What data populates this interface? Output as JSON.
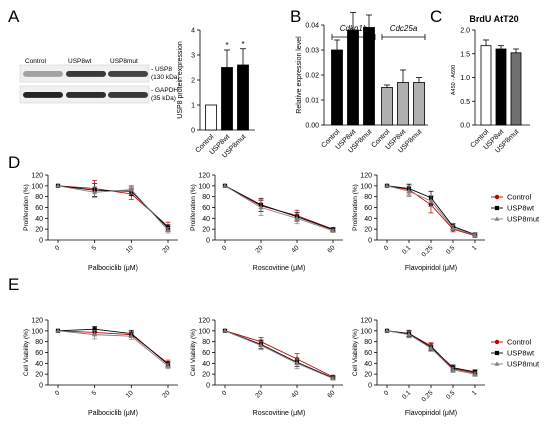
{
  "panel_letters": [
    "A",
    "B",
    "C",
    "D",
    "E"
  ],
  "blot": {
    "lanes": [
      "Control",
      "USP8wt",
      "USP8mut"
    ],
    "bands": [
      {
        "name": "- USP8",
        "size": "(130 kDa)",
        "intensity": [
          0.35,
          0.85,
          0.8
        ]
      },
      {
        "name": "- GAPDH",
        "size": "(35 kDa)",
        "intensity": [
          0.95,
          0.9,
          0.85
        ]
      }
    ]
  },
  "chart_data": [
    {
      "id": "A",
      "type": "bar",
      "categories": [
        "Control",
        "USP8wt",
        "USP8mut"
      ],
      "values": [
        1.0,
        2.5,
        2.6
      ],
      "errors": [
        0.0,
        0.7,
        0.65
      ],
      "bar_colors": [
        "#ffffff",
        "#000000",
        "#000000"
      ],
      "significance": [
        "",
        "*",
        "*"
      ],
      "ylabel": "USP8 protein expression",
      "ylim": [
        0,
        4
      ],
      "yticks": [
        0,
        1,
        2,
        3,
        4
      ]
    },
    {
      "id": "B",
      "type": "bar",
      "groups": [
        {
          "label": "Cdkn1b",
          "categories": [
            "Control",
            "USP8wt",
            "USP8mut"
          ],
          "values": [
            0.03,
            0.038,
            0.039
          ],
          "errors": [
            0.004,
            0.007,
            0.005
          ],
          "color": "#000000"
        },
        {
          "label": "Cdc25a",
          "categories": [
            "Control",
            "USP8wt",
            "USP8mut"
          ],
          "values": [
            0.015,
            0.017,
            0.017
          ],
          "errors": [
            0.001,
            0.005,
            0.002
          ],
          "color": "#b0b0b0"
        }
      ],
      "ylabel": "Relative expression level",
      "ylim": [
        0,
        0.04
      ],
      "yticks": [
        0,
        0.01,
        0.02,
        0.03,
        0.04
      ],
      "ytick_labels": [
        "0.00",
        "0.01",
        "0.02",
        "0.03",
        "0.04"
      ]
    },
    {
      "id": "C",
      "type": "bar",
      "title": "BrdU AtT20",
      "categories": [
        "Control",
        "USP8wt",
        "USP8mut"
      ],
      "values": [
        1.67,
        1.6,
        1.52
      ],
      "errors": [
        0.12,
        0.07,
        0.08
      ],
      "bar_colors": [
        "#ffffff",
        "#000000",
        "#707070"
      ],
      "ylabel": "A450 - A690",
      "ylim": [
        0,
        2
      ],
      "yticks": [
        0,
        0.5,
        1,
        1.5,
        2
      ],
      "ytick_labels": [
        "0.0",
        "0.5",
        "1.0",
        "1.5",
        "2.0"
      ]
    },
    {
      "id": "D1",
      "type": "line",
      "xlabel": "Palbociclib (μM)",
      "ylabel": "Proliferation (%)",
      "x": [
        "0",
        "5",
        "10",
        "20"
      ],
      "ylim": [
        0,
        120
      ],
      "yticks": [
        0,
        20,
        40,
        60,
        80,
        100,
        120
      ],
      "series": [
        {
          "name": "Control",
          "values": [
            100,
            95,
            85,
            25
          ],
          "errors": [
            0,
            15,
            10,
            8
          ]
        },
        {
          "name": "USP8wt",
          "values": [
            100,
            92,
            90,
            22
          ],
          "errors": [
            0,
            12,
            8,
            6
          ]
        },
        {
          "name": "USP8mut",
          "values": [
            100,
            88,
            93,
            18
          ],
          "errors": [
            0,
            10,
            8,
            5
          ]
        }
      ]
    },
    {
      "id": "D2",
      "type": "line",
      "xlabel": "Roscovitine (μM)",
      "ylabel": "Proliferation (%)",
      "x": [
        "0",
        "20",
        "40",
        "60"
      ],
      "ylim": [
        0,
        120
      ],
      "yticks": [
        0,
        20,
        40,
        60,
        80,
        100,
        120
      ],
      "series": [
        {
          "name": "Control",
          "values": [
            100,
            63,
            45,
            20
          ],
          "errors": [
            0,
            10,
            10,
            3
          ]
        },
        {
          "name": "USP8wt",
          "values": [
            100,
            65,
            43,
            19
          ],
          "errors": [
            0,
            12,
            8,
            3
          ]
        },
        {
          "name": "USP8mut",
          "values": [
            100,
            60,
            40,
            17
          ],
          "errors": [
            0,
            15,
            10,
            3
          ]
        }
      ]
    },
    {
      "id": "D3",
      "type": "line",
      "xlabel": "Flavopiridol (μM)",
      "ylabel": "Proliferation (%)",
      "x": [
        "0",
        "0.1",
        "0.25",
        "0.5",
        "1"
      ],
      "ylim": [
        0,
        120
      ],
      "yticks": [
        0,
        20,
        40,
        60,
        80,
        100,
        120
      ],
      "legend": "right",
      "series": [
        {
          "name": "Control",
          "values": [
            100,
            93,
            65,
            20,
            8
          ],
          "errors": [
            0,
            10,
            15,
            5,
            3
          ]
        },
        {
          "name": "USP8wt",
          "values": [
            100,
            95,
            78,
            25,
            10
          ],
          "errors": [
            0,
            8,
            12,
            5,
            3
          ]
        },
        {
          "name": "USP8mut",
          "values": [
            100,
            90,
            72,
            22,
            9
          ],
          "errors": [
            0,
            10,
            10,
            5,
            3
          ]
        }
      ]
    },
    {
      "id": "E1",
      "type": "line",
      "xlabel": "Palbociclib (μM)",
      "ylabel": "Cell Viability (%)",
      "x": [
        "0",
        "5",
        "10",
        "20"
      ],
      "ylim": [
        0,
        120
      ],
      "yticks": [
        0,
        20,
        40,
        60,
        80,
        100,
        120
      ],
      "series": [
        {
          "name": "Control",
          "values": [
            100,
            97,
            93,
            40
          ],
          "errors": [
            0,
            5,
            5,
            6
          ]
        },
        {
          "name": "USP8wt",
          "values": [
            100,
            103,
            95,
            38
          ],
          "errors": [
            0,
            5,
            6,
            5
          ]
        },
        {
          "name": "USP8mut",
          "values": [
            100,
            93,
            90,
            35
          ],
          "errors": [
            0,
            8,
            6,
            5
          ]
        }
      ]
    },
    {
      "id": "E2",
      "type": "line",
      "xlabel": "Roscovitine (μM)",
      "ylabel": "Cell Viability (%)",
      "x": [
        "0",
        "20",
        "40",
        "60"
      ],
      "ylim": [
        0,
        120
      ],
      "yticks": [
        0,
        20,
        40,
        60,
        80,
        100,
        120
      ],
      "series": [
        {
          "name": "Control",
          "values": [
            100,
            80,
            48,
            15
          ],
          "errors": [
            0,
            8,
            10,
            3
          ]
        },
        {
          "name": "USP8wt",
          "values": [
            100,
            75,
            42,
            13
          ],
          "errors": [
            0,
            8,
            8,
            3
          ]
        },
        {
          "name": "USP8mut",
          "values": [
            100,
            73,
            40,
            12
          ],
          "errors": [
            0,
            8,
            10,
            3
          ]
        }
      ]
    },
    {
      "id": "E3",
      "type": "line",
      "xlabel": "Flavopiridol (μM)",
      "ylabel": "Cell Viability (%)",
      "x": [
        "0",
        "0.1",
        "0.25",
        "0.5",
        "1"
      ],
      "ylim": [
        0,
        120
      ],
      "yticks": [
        0,
        20,
        40,
        60,
        80,
        100,
        120
      ],
      "legend": "right",
      "series": [
        {
          "name": "Control",
          "values": [
            100,
            95,
            72,
            30,
            22
          ],
          "errors": [
            0,
            6,
            6,
            5,
            4
          ]
        },
        {
          "name": "USP8wt",
          "values": [
            100,
            95,
            70,
            32,
            24
          ],
          "errors": [
            0,
            6,
            6,
            5,
            4
          ]
        },
        {
          "name": "USP8mut",
          "values": [
            100,
            93,
            68,
            28,
            20
          ],
          "errors": [
            0,
            6,
            6,
            5,
            4
          ]
        }
      ]
    }
  ],
  "series_styles": {
    "Control": {
      "color": "#c00000",
      "marker": "circle"
    },
    "USP8wt": {
      "color": "#000000",
      "marker": "square"
    },
    "USP8mut": {
      "color": "#808080",
      "marker": "triangle"
    }
  }
}
